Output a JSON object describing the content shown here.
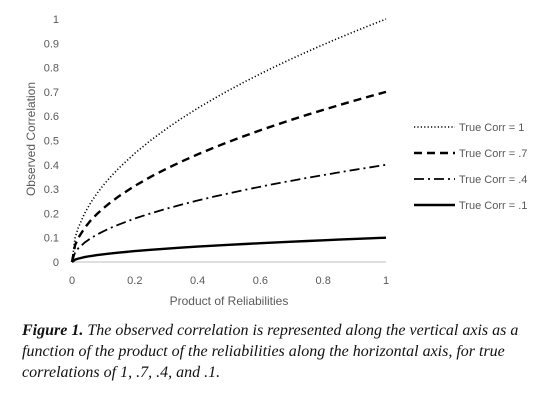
{
  "chart_data": {
    "type": "line",
    "xlabel": "Product of Reliabilities",
    "ylabel": "Observed Correlation",
    "xlim": [
      0,
      1
    ],
    "ylim": [
      0,
      1
    ],
    "xticks": [
      "0",
      "0.2",
      "0.4",
      "0.6",
      "0.8",
      "1"
    ],
    "yticks": [
      "0",
      "0.1",
      "0.2",
      "0.3",
      "0.4",
      "0.5",
      "0.6",
      "0.7",
      "0.8",
      "0.9",
      "1"
    ],
    "legend_position": "right",
    "grid": false,
    "x": [
      0,
      0.01,
      0.02,
      0.04,
      0.06,
      0.08,
      0.1,
      0.12,
      0.15,
      0.2,
      0.25,
      0.3,
      0.35,
      0.4,
      0.45,
      0.5,
      0.55,
      0.6,
      0.65,
      0.7,
      0.75,
      0.8,
      0.85,
      0.9,
      0.95,
      1.0
    ],
    "series": [
      {
        "name": "True Corr = 1",
        "style": "dotted",
        "true_corr": 1
      },
      {
        "name": "True Corr = .7",
        "style": "dashed",
        "true_corr": 0.7
      },
      {
        "name": "True Corr = .4",
        "style": "dashdot",
        "true_corr": 0.4
      },
      {
        "name": "True Corr = .1",
        "style": "solid",
        "true_corr": 0.1
      }
    ]
  },
  "caption": {
    "label": "Figure 1.",
    "text": " The observed correlation is represented along the vertical axis as a function of the product of the reliabilities along the horizontal axis, for true correlations of 1, .7, .4, and .1."
  }
}
